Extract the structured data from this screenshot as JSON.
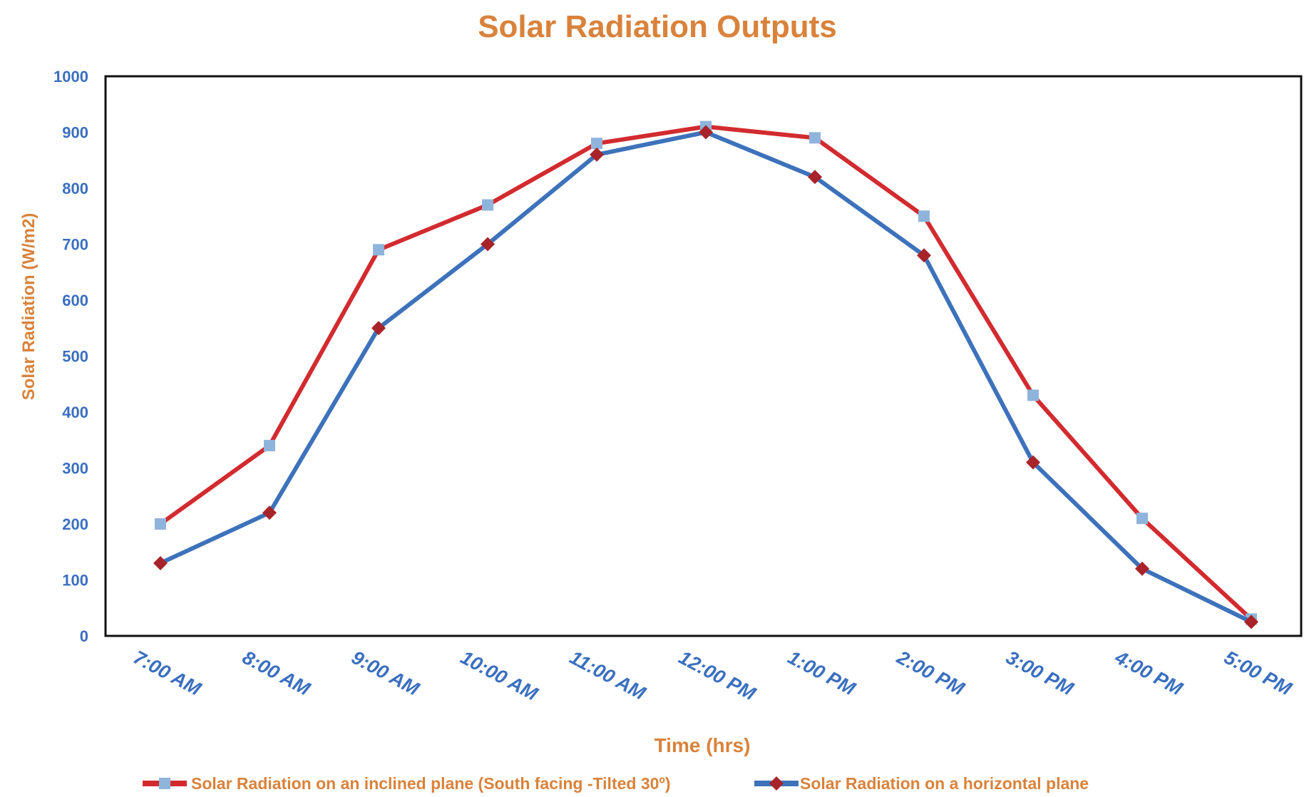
{
  "chart_data": {
    "type": "line",
    "title": "Solar Radiation Outputs",
    "xlabel": "Time (hrs)",
    "ylabel": "Solar Radiation (W/m2)",
    "ylim": [
      0,
      1000
    ],
    "yticks": [
      0,
      100,
      200,
      300,
      400,
      500,
      600,
      700,
      800,
      900,
      1000
    ],
    "grid": false,
    "legend_position": "bottom",
    "categories": [
      "7:00 AM",
      "8:00 AM",
      "9:00 AM",
      "10:00 AM",
      "11:00 AM",
      "12:00 PM",
      "1:00 PM",
      "2:00 PM",
      "3:00 PM",
      "4:00 PM",
      "5:00 PM"
    ],
    "series": [
      {
        "name": "Solar Radiation on an inclined plane (South facing -Tilted 30º)",
        "color": "#d22b2f",
        "marker": "square",
        "marker_color": "#8fb4dc",
        "values": [
          200,
          340,
          690,
          770,
          880,
          910,
          890,
          750,
          430,
          210,
          30
        ]
      },
      {
        "name": "Solar Radiation on a horizontal plane",
        "color": "#3d72bb",
        "marker": "diamond",
        "marker_color": "#a8242a",
        "values": [
          130,
          220,
          550,
          700,
          860,
          900,
          820,
          680,
          310,
          120,
          25
        ]
      }
    ]
  }
}
